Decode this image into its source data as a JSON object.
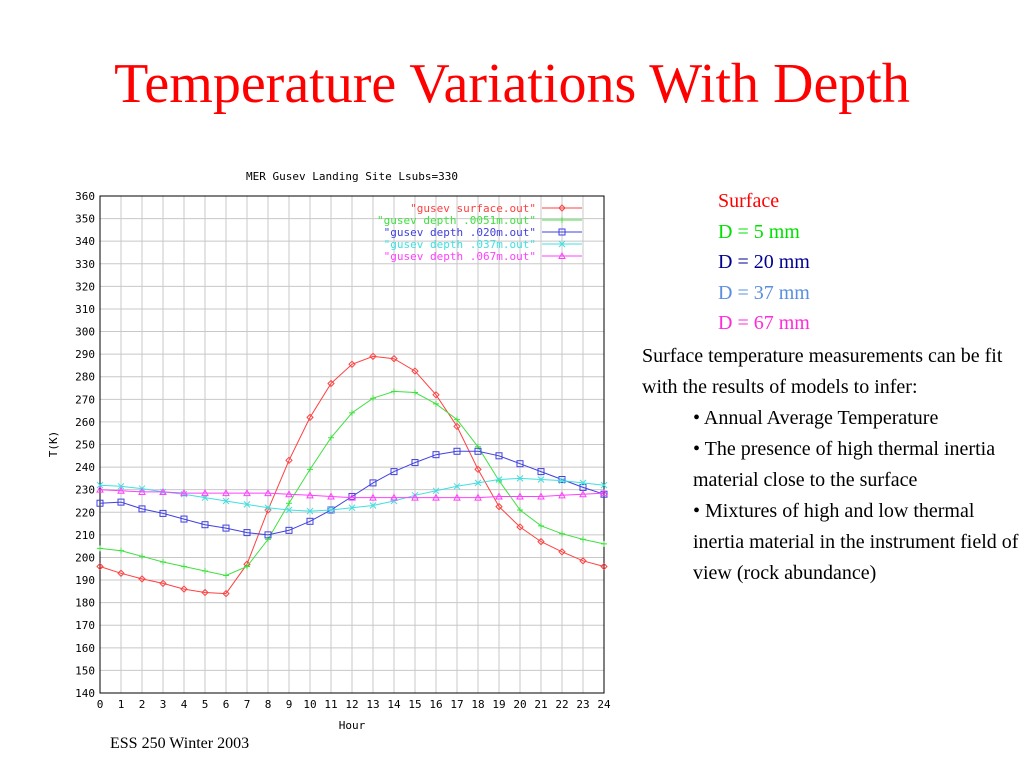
{
  "slide": {
    "title": "Temperature Variations With Depth",
    "legend_text": [
      {
        "label": "Surface",
        "color": "#ff0000"
      },
      {
        "label": "D = 5 mm",
        "color": "#00e000"
      },
      {
        "label": "D = 20 mm",
        "color": "#000090"
      },
      {
        "label": "D = 37 mm",
        "color": "#5a8fe0"
      },
      {
        "label": "D = 67 mm",
        "color": "#ff2ad9"
      }
    ],
    "description": "Surface temperature measurements can be fit with the results of models to infer:",
    "bullets": [
      "• Annual Average Temperature",
      "• The presence of high thermal inertia material close to the surface",
      "• Mixtures of high and low thermal inertia material in the instrument field of view (rock abundance)"
    ],
    "footer": "ESS 250 Winter 2003"
  },
  "chart_data": {
    "type": "line",
    "title": "MER Gusev Landing Site Lsubs=330",
    "xlabel": "Hour",
    "ylabel": "T(K)",
    "xlim": [
      0,
      24
    ],
    "ylim": [
      140,
      360
    ],
    "xticks": [
      0,
      1,
      2,
      3,
      4,
      5,
      6,
      7,
      8,
      9,
      10,
      11,
      12,
      13,
      14,
      15,
      16,
      17,
      18,
      19,
      20,
      21,
      22,
      23,
      24
    ],
    "yticks": [
      140,
      150,
      160,
      170,
      180,
      190,
      200,
      210,
      220,
      230,
      240,
      250,
      260,
      270,
      280,
      290,
      300,
      310,
      320,
      330,
      340,
      350,
      360
    ],
    "grid": true,
    "legend_position": "top-right",
    "series": [
      {
        "name": "\"gusev surface.out\"",
        "color": "#ff4040",
        "marker": "diamond",
        "x": [
          0,
          1,
          2,
          3,
          4,
          5,
          6,
          7,
          8,
          9,
          10,
          11,
          12,
          13,
          14,
          15,
          16,
          17,
          18,
          19,
          20,
          21,
          22,
          23,
          24
        ],
        "values": [
          196,
          193,
          190.5,
          188.5,
          186,
          184.5,
          184,
          197,
          221,
          243,
          262,
          277,
          285.5,
          289,
          288,
          282.5,
          272,
          258,
          239,
          222.5,
          213.5,
          207,
          202.5,
          198.5,
          196
        ]
      },
      {
        "name": "\"gusev depth .0051m.out\"",
        "color": "#40e040",
        "marker": "plus",
        "x": [
          0,
          1,
          2,
          3,
          4,
          5,
          6,
          7,
          8,
          9,
          10,
          11,
          12,
          13,
          14,
          15,
          16,
          17,
          18,
          19,
          20,
          21,
          22,
          23,
          24
        ],
        "values": [
          204,
          203,
          200.5,
          198,
          196,
          194,
          192,
          196,
          208,
          224,
          239,
          253,
          264,
          270.5,
          273.5,
          273,
          268,
          261,
          249,
          234,
          221,
          214,
          210.5,
          208,
          206
        ]
      },
      {
        "name": "\"gusev depth .020m.out\"",
        "color": "#4040e0",
        "marker": "square",
        "x": [
          0,
          1,
          2,
          3,
          4,
          5,
          6,
          7,
          8,
          9,
          10,
          11,
          12,
          13,
          14,
          15,
          16,
          17,
          18,
          19,
          20,
          21,
          22,
          23,
          24
        ],
        "values": [
          224,
          224.5,
          221.5,
          219.5,
          217,
          214.5,
          213,
          211,
          210,
          212,
          216,
          221,
          227,
          233,
          238,
          242,
          245.5,
          247,
          247,
          245,
          241.5,
          238,
          234.5,
          231,
          228
        ]
      },
      {
        "name": "\"gusev depth .037m.out\"",
        "color": "#40e0e0",
        "marker": "cross",
        "x": [
          0,
          1,
          2,
          3,
          4,
          5,
          6,
          7,
          8,
          9,
          10,
          11,
          12,
          13,
          14,
          15,
          16,
          17,
          18,
          19,
          20,
          21,
          22,
          23,
          24
        ],
        "values": [
          232,
          231.5,
          230.5,
          229,
          228,
          226.5,
          225,
          223.5,
          222,
          221,
          220.5,
          221,
          222,
          223,
          225,
          227.5,
          229.5,
          231.5,
          233,
          234.5,
          235,
          234.5,
          234,
          233,
          232
        ]
      },
      {
        "name": "\"gusev depth .067m.out\"",
        "color": "#ff40ff",
        "marker": "triangle",
        "x": [
          0,
          1,
          2,
          3,
          4,
          5,
          6,
          7,
          8,
          9,
          10,
          11,
          12,
          13,
          14,
          15,
          16,
          17,
          18,
          19,
          20,
          21,
          22,
          23,
          24
        ],
        "values": [
          230,
          229.5,
          229,
          229,
          228.5,
          228.5,
          228.5,
          228.5,
          228.5,
          228,
          227.5,
          227,
          226.5,
          226.5,
          226.5,
          226.5,
          226.5,
          226.5,
          226.5,
          227,
          227,
          227,
          227.5,
          228,
          228.5
        ]
      }
    ]
  }
}
